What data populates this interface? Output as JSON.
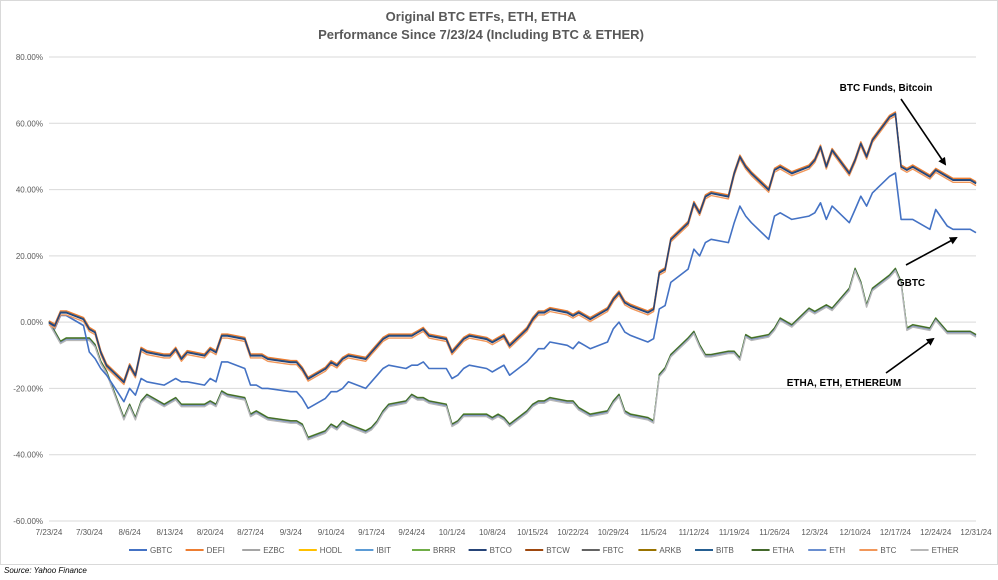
{
  "chart_data": {
    "type": "line",
    "title": "Original BTC ETFs, ETH, ETHA",
    "subtitle": "Performance Since 7/23/24 (Including BTC & ETHER)",
    "source": "Source: Yahoo Finance",
    "ylim": [
      -0.6,
      0.8
    ],
    "yticks": [
      -0.6,
      -0.4,
      -0.2,
      0,
      0.2,
      0.4,
      0.6,
      0.8
    ],
    "ytick_labels": [
      "-60.00%",
      "-40.00%",
      "-20.00%",
      "0.00%",
      "20.00%",
      "40.00%",
      "60.00%",
      "80.00%"
    ],
    "x_tick_labels": [
      "7/23/24",
      "7/30/24",
      "8/6/24",
      "8/13/24",
      "8/20/24",
      "8/27/24",
      "9/3/24",
      "9/10/24",
      "9/17/24",
      "9/24/24",
      "10/1/24",
      "10/8/24",
      "10/15/24",
      "10/22/24",
      "10/29/24",
      "11/5/24",
      "11/12/24",
      "11/19/24",
      "11/26/24",
      "12/3/24",
      "12/10/24",
      "12/17/24",
      "12/24/24",
      "12/31/24"
    ],
    "x": [
      "7/23/24",
      "7/24/24",
      "7/25/24",
      "7/26/24",
      "7/29/24",
      "7/30/24",
      "7/31/24",
      "8/1/24",
      "8/2/24",
      "8/5/24",
      "8/6/24",
      "8/7/24",
      "8/8/24",
      "8/9/24",
      "8/12/24",
      "8/13/24",
      "8/14/24",
      "8/15/24",
      "8/16/24",
      "8/19/24",
      "8/20/24",
      "8/21/24",
      "8/22/24",
      "8/23/24",
      "8/26/24",
      "8/27/24",
      "8/28/24",
      "8/29/24",
      "8/30/24",
      "9/3/24",
      "9/4/24",
      "9/5/24",
      "9/6/24",
      "9/9/24",
      "9/10/24",
      "9/11/24",
      "9/12/24",
      "9/13/24",
      "9/16/24",
      "9/17/24",
      "9/18/24",
      "9/19/24",
      "9/20/24",
      "9/23/24",
      "9/24/24",
      "9/25/24",
      "9/26/24",
      "9/27/24",
      "9/30/24",
      "10/1/24",
      "10/2/24",
      "10/3/24",
      "10/4/24",
      "10/7/24",
      "10/8/24",
      "10/9/24",
      "10/10/24",
      "10/11/24",
      "10/14/24",
      "10/15/24",
      "10/16/24",
      "10/17/24",
      "10/18/24",
      "10/21/24",
      "10/22/24",
      "10/23/24",
      "10/24/24",
      "10/25/24",
      "10/28/24",
      "10/29/24",
      "10/30/24",
      "10/31/24",
      "11/1/24",
      "11/4/24",
      "11/5/24",
      "11/6/24",
      "11/7/24",
      "11/8/24",
      "11/11/24",
      "11/12/24",
      "11/13/24",
      "11/14/24",
      "11/15/24",
      "11/18/24",
      "11/19/24",
      "11/20/24",
      "11/21/24",
      "11/22/24",
      "11/25/24",
      "11/26/24",
      "11/27/24",
      "11/29/24",
      "12/2/24",
      "12/3/24",
      "12/4/24",
      "12/5/24",
      "12/6/24",
      "12/9/24",
      "12/10/24",
      "12/11/24",
      "12/12/24",
      "12/13/24",
      "12/16/24",
      "12/17/24",
      "12/18/24",
      "12/19/24",
      "12/20/24",
      "12/23/24",
      "12/24/24",
      "12/26/24",
      "12/27/24",
      "12/30/24",
      "12/31/24"
    ],
    "key_series": {
      "btc_funds": [
        0,
        -0.01,
        0.03,
        0.03,
        0.01,
        -0.02,
        -0.03,
        -0.09,
        -0.13,
        -0.18,
        -0.13,
        -0.16,
        -0.08,
        -0.09,
        -0.1,
        -0.1,
        -0.08,
        -0.11,
        -0.09,
        -0.1,
        -0.08,
        -0.09,
        -0.04,
        -0.04,
        -0.05,
        -0.1,
        -0.1,
        -0.1,
        -0.11,
        -0.12,
        -0.12,
        -0.14,
        -0.17,
        -0.14,
        -0.12,
        -0.13,
        -0.11,
        -0.1,
        -0.11,
        -0.09,
        -0.07,
        -0.05,
        -0.04,
        -0.04,
        -0.04,
        -0.03,
        -0.02,
        -0.04,
        -0.05,
        -0.09,
        -0.07,
        -0.05,
        -0.04,
        -0.05,
        -0.06,
        -0.05,
        -0.04,
        -0.07,
        -0.02,
        0.01,
        0.03,
        0.03,
        0.04,
        0.03,
        0.02,
        0.03,
        0.02,
        0.01,
        0.04,
        0.07,
        0.09,
        0.06,
        0.05,
        0.03,
        0.04,
        0.15,
        0.16,
        0.25,
        0.3,
        0.36,
        0.33,
        0.38,
        0.39,
        0.38,
        0.45,
        0.5,
        0.47,
        0.45,
        0.4,
        0.46,
        0.47,
        0.45,
        0.47,
        0.49,
        0.53,
        0.47,
        0.52,
        0.45,
        0.49,
        0.54,
        0.5,
        0.55,
        0.62,
        0.63,
        0.47,
        0.46,
        0.47,
        0.44,
        0.46,
        0.44,
        0.43,
        0.43,
        0.42
      ],
      "gbtc": [
        0,
        -0.02,
        0.02,
        0.02,
        -0.01,
        -0.09,
        -0.11,
        -0.14,
        -0.16,
        -0.24,
        -0.2,
        -0.22,
        -0.17,
        -0.18,
        -0.19,
        -0.18,
        -0.17,
        -0.18,
        -0.18,
        -0.19,
        -0.17,
        -0.18,
        -0.12,
        -0.12,
        -0.14,
        -0.19,
        -0.19,
        -0.2,
        -0.2,
        -0.21,
        -0.21,
        -0.23,
        -0.26,
        -0.23,
        -0.21,
        -0.21,
        -0.2,
        -0.18,
        -0.2,
        -0.18,
        -0.16,
        -0.14,
        -0.13,
        -0.14,
        -0.13,
        -0.13,
        -0.12,
        -0.14,
        -0.14,
        -0.17,
        -0.16,
        -0.14,
        -0.13,
        -0.14,
        -0.15,
        -0.14,
        -0.13,
        -0.16,
        -0.12,
        -0.1,
        -0.08,
        -0.08,
        -0.06,
        -0.07,
        -0.08,
        -0.06,
        -0.07,
        -0.08,
        -0.06,
        -0.02,
        0.0,
        -0.03,
        -0.04,
        -0.06,
        -0.05,
        0.04,
        0.05,
        0.12,
        0.16,
        0.22,
        0.2,
        0.24,
        0.25,
        0.24,
        0.3,
        0.35,
        0.32,
        0.3,
        0.25,
        0.32,
        0.33,
        0.31,
        0.32,
        0.33,
        0.36,
        0.31,
        0.35,
        0.3,
        0.34,
        0.38,
        0.35,
        0.39,
        0.44,
        0.45,
        0.31,
        0.31,
        0.31,
        0.28,
        0.34,
        0.29,
        0.28,
        0.28,
        0.27
      ],
      "eth_group": [
        0,
        -0.03,
        -0.06,
        -0.05,
        -0.05,
        -0.05,
        -0.07,
        -0.12,
        -0.15,
        -0.29,
        -0.25,
        -0.29,
        -0.24,
        -0.22,
        -0.25,
        -0.24,
        -0.23,
        -0.25,
        -0.25,
        -0.25,
        -0.24,
        -0.25,
        -0.21,
        -0.22,
        -0.23,
        -0.28,
        -0.27,
        -0.28,
        -0.29,
        -0.3,
        -0.3,
        -0.31,
        -0.35,
        -0.33,
        -0.31,
        -0.32,
        -0.3,
        -0.31,
        -0.33,
        -0.32,
        -0.3,
        -0.27,
        -0.25,
        -0.24,
        -0.22,
        -0.23,
        -0.23,
        -0.24,
        -0.25,
        -0.31,
        -0.3,
        -0.28,
        -0.28,
        -0.28,
        -0.29,
        -0.28,
        -0.29,
        -0.31,
        -0.27,
        -0.25,
        -0.24,
        -0.24,
        -0.23,
        -0.24,
        -0.24,
        -0.26,
        -0.27,
        -0.28,
        -0.27,
        -0.24,
        -0.22,
        -0.27,
        -0.28,
        -0.29,
        -0.3,
        -0.16,
        -0.14,
        -0.1,
        -0.05,
        -0.03,
        -0.07,
        -0.1,
        -0.1,
        -0.09,
        -0.09,
        -0.11,
        -0.04,
        -0.05,
        -0.04,
        -0.02,
        0.01,
        -0.01,
        0.04,
        0.03,
        0.04,
        0.05,
        0.04,
        0.1,
        0.16,
        0.12,
        0.05,
        0.1,
        0.14,
        0.16,
        0.12,
        -0.02,
        -0.01,
        -0.02,
        0.01,
        -0.03,
        -0.03,
        -0.03,
        -0.04
      ]
    },
    "series": [
      {
        "name": "GBTC",
        "color": "#4472c4",
        "key": "gbtc",
        "width": 1.6
      },
      {
        "name": "DEFI",
        "color": "#ed7d31",
        "key": "btc_funds",
        "off": 0.004,
        "width": 1.4
      },
      {
        "name": "EZBC",
        "color": "#a5a5a5",
        "key": "eth_group",
        "off": 0.0,
        "width": 1.2
      },
      {
        "name": "HODL",
        "color": "#ffc000",
        "key": "btc_funds",
        "off": 0.0,
        "width": 1.2
      },
      {
        "name": "IBIT",
        "color": "#5b9bd5",
        "key": "btc_funds",
        "off": 0.002,
        "width": 1.2
      },
      {
        "name": "BRRR",
        "color": "#70ad47",
        "key": "eth_group",
        "off": 0.003,
        "width": 1.2
      },
      {
        "name": "BTCO",
        "color": "#264478",
        "key": "btc_funds",
        "off": -0.002,
        "width": 1.4
      },
      {
        "name": "BTCW",
        "color": "#9e480e",
        "key": "btc_funds",
        "off": 0.001,
        "width": 1.2
      },
      {
        "name": "FBTC",
        "color": "#636363",
        "key": "btc_funds",
        "off": 0.0,
        "width": 1.2
      },
      {
        "name": "ARKB",
        "color": "#997300",
        "key": "btc_funds",
        "off": -0.001,
        "width": 1.2
      },
      {
        "name": "BITB",
        "color": "#255e91",
        "key": "btc_funds",
        "off": 0.0,
        "width": 1.3
      },
      {
        "name": "ETHA",
        "color": "#43682b",
        "key": "eth_group",
        "off": 0.002,
        "width": 1.2
      },
      {
        "name": "ETH",
        "color": "#698ed0",
        "key": "eth_group",
        "off": -0.003,
        "width": 1.2
      },
      {
        "name": "BTC",
        "color": "#f1975a",
        "key": "btc_funds",
        "off": -0.008,
        "width": 1.4
      },
      {
        "name": "ETHER",
        "color": "#b7b7b7",
        "key": "eth_group",
        "off": -0.005,
        "width": 1.4
      }
    ],
    "annotations": [
      {
        "name": "btc-funds-annotation",
        "text": "BTC Funds, Bitcoin"
      },
      {
        "name": "gbtc-annotation",
        "text": "GBTC"
      },
      {
        "name": "etha-annotation",
        "text": "ETHA, ETH, ETHEREUM"
      }
    ],
    "grid": true,
    "legend_position": "bottom"
  }
}
